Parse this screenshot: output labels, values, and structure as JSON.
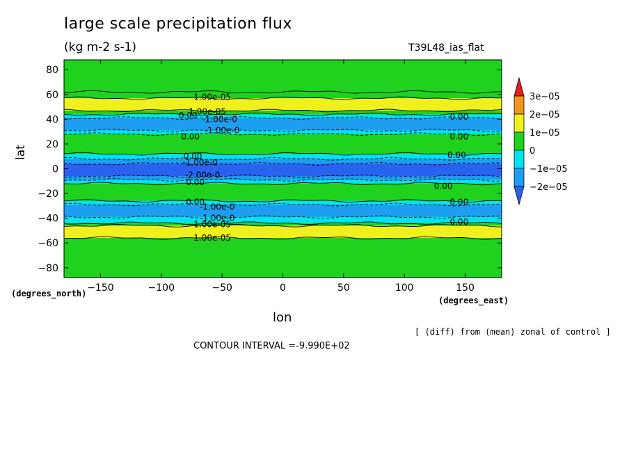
{
  "chart_data": {
    "type": "heatmap",
    "title": "large scale precipitation flux",
    "subtitle": "(kg m-2 s-1)",
    "run_id": "T39L48_ias_flat",
    "xlabel": "lon",
    "ylabel": "lat",
    "x_units": "(degrees_east)",
    "y_units": "(degrees_north)",
    "xlim": [
      -180,
      180
    ],
    "ylim": [
      -88,
      88
    ],
    "x_ticks": [
      -150,
      -100,
      -50,
      0,
      50,
      100,
      150
    ],
    "y_ticks": [
      80,
      60,
      40,
      20,
      0,
      -20,
      -40,
      -60,
      -80
    ],
    "x_tick_labels": [
      "−150",
      "−100",
      "−50",
      "0",
      "50",
      "100",
      "150"
    ],
    "y_tick_labels": [
      "80",
      "60",
      "40",
      "20",
      "0",
      "−20",
      "−40",
      "−60",
      "−80"
    ],
    "note": "[ (diff) from (mean) zonal of control ]",
    "contour_interval_label": "CONTOUR INTERVAL =-9.990E+02",
    "colorbar": {
      "levels": [
        -3e-05,
        -2e-05,
        -1e-05,
        0,
        1e-05,
        2e-05,
        3e-05
      ],
      "labels": [
        "3e−05",
        "2e−05",
        "1e−05",
        "0",
        "−1e−05",
        "−2e−05"
      ],
      "colors": [
        "#2a62f0",
        "#1e9ef0",
        "#00e4f0",
        "#1ed21e",
        "#f0f01e",
        "#f0961e",
        "#e61e1e"
      ]
    },
    "bands": [
      {
        "lat_range": [
          62,
          88
        ],
        "color": "#1ed21e"
      },
      {
        "lat_range": [
          57,
          62
        ],
        "color": "#1ed21e"
      },
      {
        "lat_range": [
          47,
          57
        ],
        "color": "#f0f01e"
      },
      {
        "lat_range": [
          44,
          47
        ],
        "color": "#1ed21e"
      },
      {
        "lat_range": [
          41,
          44
        ],
        "color": "#00e4f0"
      },
      {
        "lat_range": [
          31,
          41
        ],
        "color": "#1e9ef0"
      },
      {
        "lat_range": [
          28,
          31
        ],
        "color": "#00e4f0"
      },
      {
        "lat_range": [
          12,
          28
        ],
        "color": "#1ed21e"
      },
      {
        "lat_range": [
          8,
          12
        ],
        "color": "#00e4f0"
      },
      {
        "lat_range": [
          4,
          8
        ],
        "color": "#1e9ef0"
      },
      {
        "lat_range": [
          -6,
          4
        ],
        "color": "#2a62f0"
      },
      {
        "lat_range": [
          -9,
          -6
        ],
        "color": "#1e9ef0"
      },
      {
        "lat_range": [
          -12,
          -9
        ],
        "color": "#00e4f0"
      },
      {
        "lat_range": [
          -26,
          -12
        ],
        "color": "#1ed21e"
      },
      {
        "lat_range": [
          -29,
          -26
        ],
        "color": "#00e4f0"
      },
      {
        "lat_range": [
          -39,
          -29
        ],
        "color": "#1e9ef0"
      },
      {
        "lat_range": [
          -44,
          -39
        ],
        "color": "#00e4f0"
      },
      {
        "lat_range": [
          -46,
          -44
        ],
        "color": "#1ed21e"
      },
      {
        "lat_range": [
          -56,
          -46
        ],
        "color": "#f0f01e"
      },
      {
        "lat_range": [
          -88,
          -56
        ],
        "color": "#1ed21e"
      }
    ],
    "contour_labels": [
      {
        "text": "1.00e-05",
        "lon": -58,
        "lat": 58
      },
      {
        "text": "1.00e-05",
        "lon": -62,
        "lat": 46
      },
      {
        "text": "0.00",
        "lon": -78,
        "lat": 43
      },
      {
        "text": "-1.00e-0",
        "lon": -52,
        "lat": 40
      },
      {
        "text": "-1.00e-0",
        "lon": -50,
        "lat": 31
      },
      {
        "text": "0.00",
        "lon": -76,
        "lat": 26
      },
      {
        "text": "0.00",
        "lon": -74,
        "lat": 10
      },
      {
        "text": "-1.00e-0",
        "lon": -68,
        "lat": 5
      },
      {
        "text": "-2.00e-0",
        "lon": -66,
        "lat": -5
      },
      {
        "text": "0.00",
        "lon": -72,
        "lat": -11
      },
      {
        "text": "0.00",
        "lon": -72,
        "lat": -27
      },
      {
        "text": "-1.00e-0",
        "lon": -54,
        "lat": -31
      },
      {
        "text": "-1.00e-0",
        "lon": -54,
        "lat": -40
      },
      {
        "text": "1.00e-05",
        "lon": -58,
        "lat": -45
      },
      {
        "text": "1.00e-05",
        "lon": -58,
        "lat": -56
      },
      {
        "text": "0.00",
        "lon": 145,
        "lat": 42
      },
      {
        "text": "0.00",
        "lon": 145,
        "lat": 26
      },
      {
        "text": "0.00",
        "lon": 143,
        "lat": 11
      },
      {
        "text": "0.00",
        "lon": 132,
        "lat": -14
      },
      {
        "text": "0.00",
        "lon": 145,
        "lat": -27
      },
      {
        "text": "0.00",
        "lon": 145,
        "lat": -43
      }
    ]
  }
}
